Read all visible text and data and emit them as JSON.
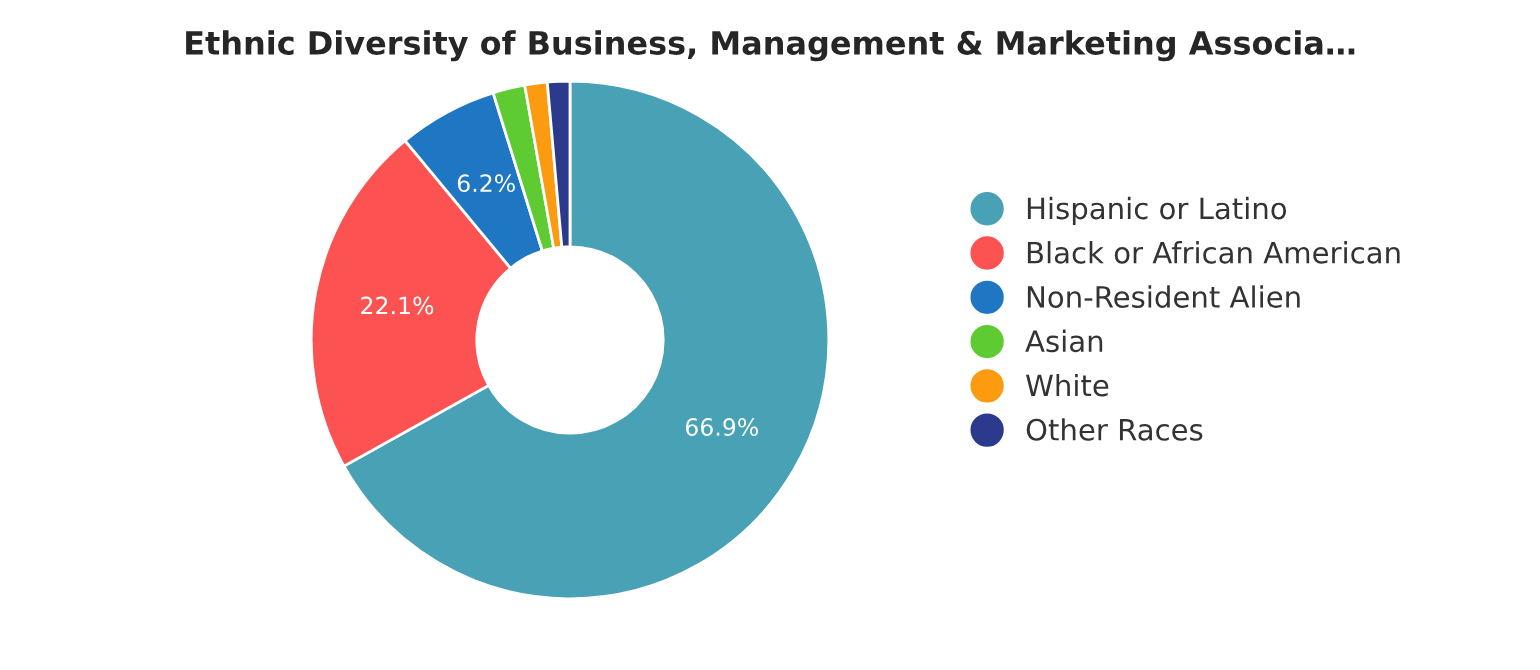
{
  "chart_data": {
    "type": "donut",
    "title": "Ethnic Diversity of Business, Management & Marketing Associa…",
    "categories": [
      "Hispanic or Latino",
      "Black or African American",
      "Non-Resident Alien",
      "Asian",
      "White",
      "Other Races"
    ],
    "values": [
      66.9,
      22.1,
      6.2,
      2.0,
      1.4,
      1.4
    ],
    "value_labels": [
      "66.9%",
      "22.1%",
      "6.2%",
      null,
      null,
      null
    ],
    "colors": [
      "#48a1b4",
      "#fc5252",
      "#1f77c4",
      "#5dcb31",
      "#fc9a10",
      "#2c3a8e"
    ],
    "legend": "right"
  }
}
